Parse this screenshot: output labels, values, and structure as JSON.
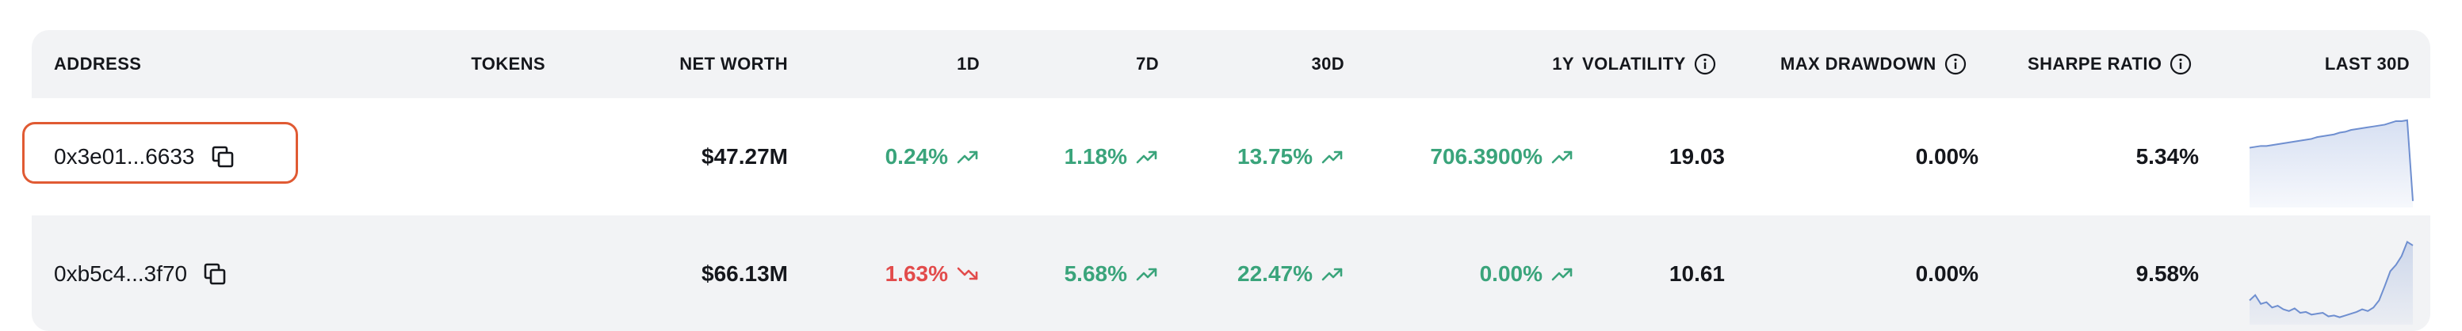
{
  "columns": {
    "address": "ADDRESS",
    "tokens": "TOKENS",
    "net_worth": "NET WORTH",
    "d1": "1D",
    "d7": "7D",
    "d30": "30D",
    "y1": "1Y",
    "volatility": "VOLATILITY",
    "max_drawdown": "MAX DRAWDOWN",
    "sharpe_ratio": "SHARPE RATIO",
    "last30d": "LAST 30D"
  },
  "icons": {
    "info": "info-circle-icon",
    "copy": "copy-icon",
    "up": "trend-up-icon",
    "down": "trend-down-icon"
  },
  "colors": {
    "positive": "#3aa47b",
    "negative": "#e24b4b",
    "highlight": "#e05a33",
    "sparkline": "#6f8fd0"
  },
  "rows": [
    {
      "address": "0x3e01...6633",
      "tokens": "",
      "net_worth": "$47.27M",
      "d1": {
        "value": "0.24%",
        "dir": "up"
      },
      "d7": {
        "value": "1.18%",
        "dir": "up"
      },
      "d30": {
        "value": "13.75%",
        "dir": "up"
      },
      "y1": {
        "value": "706.3900%",
        "dir": "up"
      },
      "volatility": "19.03",
      "max_drawdown": "0.00%",
      "sharpe_ratio": "5.34%",
      "selected": true,
      "sparkline": [
        0.62,
        0.63,
        0.64,
        0.64,
        0.65,
        0.66,
        0.67,
        0.68,
        0.69,
        0.7,
        0.71,
        0.72,
        0.74,
        0.75,
        0.76,
        0.77,
        0.79,
        0.8,
        0.82,
        0.83,
        0.84,
        0.85,
        0.86,
        0.87,
        0.88,
        0.9,
        0.92,
        0.92,
        0.93,
        0.02
      ]
    },
    {
      "address": "0xb5c4...3f70",
      "tokens": "",
      "net_worth": "$66.13M",
      "d1": {
        "value": "1.63%",
        "dir": "down"
      },
      "d7": {
        "value": "5.68%",
        "dir": "up"
      },
      "d30": {
        "value": "22.47%",
        "dir": "up"
      },
      "y1": {
        "value": "0.00%",
        "dir": "up"
      },
      "volatility": "10.61",
      "max_drawdown": "0.00%",
      "sharpe_ratio": "9.58%",
      "selected": false,
      "sparkline": [
        0.22,
        0.28,
        0.18,
        0.2,
        0.14,
        0.16,
        0.12,
        0.1,
        0.13,
        0.08,
        0.09,
        0.06,
        0.07,
        0.08,
        0.04,
        0.05,
        0.03,
        0.05,
        0.07,
        0.09,
        0.12,
        0.1,
        0.14,
        0.22,
        0.38,
        0.55,
        0.62,
        0.72,
        0.88,
        0.84
      ]
    }
  ]
}
